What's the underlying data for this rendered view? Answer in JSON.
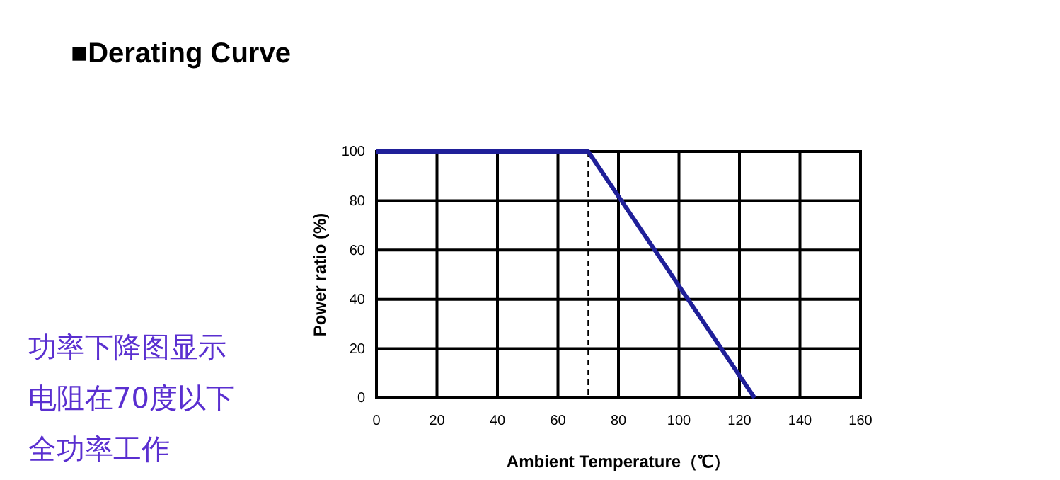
{
  "chart_data": {
    "type": "line",
    "title": "■Derating Curve",
    "xlabel": "Ambient Temperature（℃）",
    "ylabel": "Power ratio (%)",
    "x": [
      0,
      70,
      125
    ],
    "series": [
      {
        "color": "#1f1f99",
        "values": [
          100,
          100,
          0
        ]
      }
    ],
    "xlim": [
      0,
      160
    ],
    "ylim": [
      0,
      100
    ],
    "xticks": [
      0,
      20,
      40,
      60,
      80,
      100,
      120,
      140,
      160
    ],
    "yticks": [
      0,
      20,
      40,
      60,
      80,
      100
    ],
    "grid": true,
    "line_style": "solid",
    "marker": "none",
    "ref_lines": [
      {
        "axis": "x",
        "value": 70,
        "label": null,
        "color": "#000000",
        "line_style": "dashed"
      }
    ],
    "annotations": [
      "功率下降图显示",
      "电阻在70度以下",
      "全功率工作"
    ]
  }
}
